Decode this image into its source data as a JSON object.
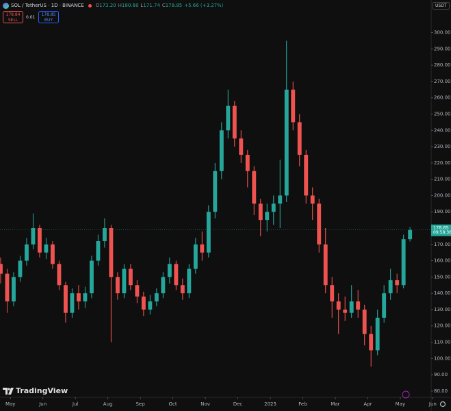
{
  "header": {
    "symbol": "SOL / TetherUS · 1D · BINANCE",
    "ohlc": [
      [
        "O",
        "173.20"
      ],
      [
        "H",
        "180.68"
      ],
      [
        "L",
        "171.74"
      ],
      [
        "C",
        "178.85"
      ]
    ],
    "change": "+5.66 (+3.27%)",
    "sell_price": "178.84",
    "sell_label": "SELL",
    "spread": "0.01",
    "buy_price": "178.85",
    "buy_label": "BUY",
    "currency": "USDT",
    "countdown": "09:58:36",
    "logo": "TradingView"
  },
  "chart_data": {
    "type": "candlestick",
    "up_color": "#26a69a",
    "down_color": "#ef5350",
    "grid": false,
    "x": [
      -0.3,
      -0.1,
      0.1,
      0.3,
      0.5,
      0.7,
      0.9,
      1.1,
      1.3,
      1.5,
      1.7,
      1.9,
      2.1,
      2.3,
      2.5,
      2.7,
      2.9,
      3.1,
      3.3,
      3.5,
      3.7,
      3.9,
      4.1,
      4.3,
      4.5,
      4.7,
      4.9,
      5.1,
      5.3,
      5.5,
      5.7,
      5.9,
      6.1,
      6.3,
      6.5,
      6.7,
      6.9,
      7.1,
      7.3,
      7.5,
      7.7,
      7.9,
      8.1,
      8.3,
      8.5,
      8.7,
      8.9,
      9.1,
      9.3,
      9.5,
      9.7,
      9.9,
      10.1,
      10.3,
      10.5,
      10.7,
      10.9,
      11.1,
      11.3,
      11.5,
      11.7,
      11.9,
      12.1,
      12.3
    ],
    "open": [
      158,
      152,
      135,
      150,
      160,
      170,
      180,
      165,
      170,
      158,
      145,
      128,
      140,
      135,
      140,
      160,
      172,
      180,
      150,
      140,
      155,
      145,
      138,
      130,
      135,
      140,
      150,
      158,
      145,
      140,
      155,
      170,
      165,
      190,
      215,
      240,
      255,
      235,
      225,
      215,
      195,
      185,
      190,
      195,
      200,
      265,
      245,
      225,
      200,
      195,
      170,
      145,
      135,
      130,
      128,
      135,
      130,
      115,
      105,
      125,
      140,
      148,
      145,
      173.2
    ],
    "high": [
      162,
      155,
      153,
      163,
      174,
      189,
      182,
      174,
      172,
      160,
      147,
      143,
      145,
      144,
      163,
      176,
      186,
      182,
      153,
      158,
      158,
      148,
      141,
      139,
      143,
      153,
      162,
      160,
      149,
      158,
      174,
      178,
      194,
      220,
      245,
      265,
      258,
      240,
      228,
      218,
      198,
      195,
      200,
      222,
      295,
      270,
      250,
      228,
      205,
      198,
      180,
      150,
      140,
      138,
      145,
      142,
      133,
      120,
      130,
      145,
      155,
      152,
      176,
      180.68
    ],
    "low": [
      146,
      128,
      132,
      147,
      157,
      167,
      162,
      161,
      155,
      142,
      122,
      125,
      130,
      131,
      137,
      157,
      168,
      110,
      136,
      137,
      142,
      134,
      126,
      127,
      132,
      137,
      146,
      142,
      136,
      137,
      152,
      160,
      162,
      186,
      210,
      235,
      230,
      220,
      205,
      188,
      175,
      178,
      182,
      180,
      196,
      240,
      218,
      195,
      185,
      165,
      140,
      125,
      115,
      123,
      125,
      125,
      108,
      95,
      102,
      122,
      136,
      140,
      143,
      171.74
    ],
    "close": [
      152,
      135,
      150,
      160,
      170,
      180,
      165,
      170,
      158,
      145,
      128,
      140,
      135,
      140,
      160,
      172,
      180,
      150,
      140,
      155,
      145,
      138,
      130,
      135,
      140,
      150,
      158,
      145,
      140,
      155,
      170,
      165,
      190,
      215,
      240,
      255,
      235,
      225,
      215,
      195,
      185,
      190,
      195,
      200,
      265,
      245,
      225,
      200,
      195,
      170,
      145,
      135,
      130,
      128,
      135,
      130,
      115,
      105,
      125,
      140,
      148,
      145,
      173.2,
      178.85
    ],
    "xlim": [
      -0.32,
      12.95
    ],
    "xticks": [
      {
        "value": 0,
        "label": "May"
      },
      {
        "value": 1,
        "label": "Jun"
      },
      {
        "value": 2,
        "label": "Jul"
      },
      {
        "value": 3,
        "label": "Aug"
      },
      {
        "value": 4,
        "label": "Sep"
      },
      {
        "value": 5,
        "label": "Oct"
      },
      {
        "value": 6,
        "label": "Nov"
      },
      {
        "value": 7,
        "label": "Dec"
      },
      {
        "value": 8,
        "label": "2025"
      },
      {
        "value": 9,
        "label": "Feb"
      },
      {
        "value": 10,
        "label": "Mar"
      },
      {
        "value": 11,
        "label": "Apr"
      },
      {
        "value": 12,
        "label": "May"
      },
      {
        "value": 13,
        "label": "Jun"
      }
    ],
    "ylim": [
      77,
      320
    ],
    "yticks": [
      {
        "value": 80,
        "label": "80.00"
      },
      {
        "value": 90,
        "label": "90.00"
      },
      {
        "value": 100,
        "label": "100.00"
      },
      {
        "value": 110,
        "label": "110.00"
      },
      {
        "value": 120,
        "label": "120.00"
      },
      {
        "value": 130,
        "label": "130.00"
      },
      {
        "value": 140,
        "label": "140.00"
      },
      {
        "value": 150,
        "label": "150.00"
      },
      {
        "value": 160,
        "label": "160.00"
      },
      {
        "value": 170,
        "label": "170.00"
      },
      {
        "value": 180,
        "label": "180.00"
      },
      {
        "value": 190,
        "label": "190.00"
      },
      {
        "value": 200,
        "label": "200.00"
      },
      {
        "value": 210,
        "label": "210.00"
      },
      {
        "value": 220,
        "label": "220.00"
      },
      {
        "value": 230,
        "label": "230.00"
      },
      {
        "value": 240,
        "label": "240.00"
      },
      {
        "value": 250,
        "label": "250.00"
      },
      {
        "value": 260,
        "label": "260.00"
      },
      {
        "value": 270,
        "label": "270.00"
      },
      {
        "value": 280,
        "label": "280.00"
      },
      {
        "value": 290,
        "label": "290.00"
      },
      {
        "value": 300,
        "label": "300.00"
      }
    ]
  }
}
